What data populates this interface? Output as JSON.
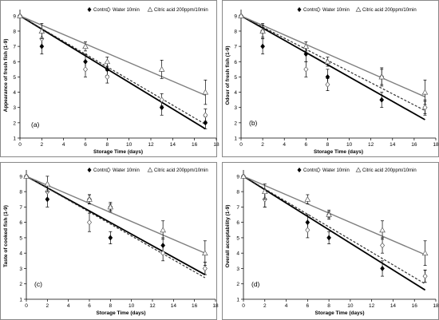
{
  "chart_data": [
    {
      "type": "scatter",
      "panel_label": "(a)",
      "ylabel": "Appearance of fresh fish (1-9)",
      "xlabel": "Storage Time (days)",
      "xlim": [
        0,
        18
      ],
      "ylim": [
        1,
        9.2
      ],
      "xticks": [
        0,
        2,
        4,
        6,
        8,
        10,
        12,
        14,
        16,
        18
      ],
      "yticks": [
        1,
        2,
        3,
        4,
        5,
        6,
        7,
        8,
        9
      ],
      "legend": [
        "Control",
        "Water 10min",
        "Citric acid 200ppm/10min"
      ],
      "x": [
        0,
        2,
        6,
        8,
        13,
        17
      ],
      "series": [
        {
          "name": "Control",
          "values": [
            9,
            7,
            6,
            5.5,
            3,
            2
          ],
          "err": [
            0,
            0.5,
            0.5,
            0.4,
            0.5,
            0.4
          ],
          "trend": [
            9,
            1.6
          ]
        },
        {
          "name": "Water 10min",
          "values": [
            9,
            7.5,
            5.5,
            5,
            3.5,
            2.5
          ],
          "err": [
            0,
            0.5,
            0.5,
            0.4,
            0.4,
            0.4
          ],
          "trend": [
            9,
            1.9
          ]
        },
        {
          "name": "Citric acid 200ppm/10min",
          "values": [
            9,
            8,
            7,
            6,
            5.5,
            4
          ],
          "err": [
            0,
            0.5,
            0.3,
            0.3,
            0.6,
            0.8
          ],
          "trend": [
            9,
            3.8
          ]
        }
      ]
    },
    {
      "type": "scatter",
      "panel_label": "(b)",
      "ylabel": "Odour of fresh fish (1-9)",
      "xlabel": "Storage Time (days)",
      "xlim": [
        0,
        18
      ],
      "ylim": [
        1,
        9.2
      ],
      "xticks": [
        0,
        2,
        4,
        6,
        8,
        10,
        12,
        14,
        16,
        18
      ],
      "yticks": [
        1,
        2,
        3,
        4,
        5,
        6,
        7,
        8,
        9
      ],
      "legend": [
        "Control",
        "Water 10min",
        "Citric acid 200ppm/10min"
      ],
      "x": [
        0,
        2,
        6,
        8,
        13,
        17
      ],
      "series": [
        {
          "name": "Control",
          "values": [
            9,
            7,
            6.5,
            5,
            3.5,
            3
          ],
          "err": [
            0,
            0.5,
            0.5,
            0.5,
            0.5,
            0.4
          ],
          "trend": [
            9,
            2.2
          ]
        },
        {
          "name": "Water 10min",
          "values": [
            9,
            8,
            5.5,
            4.5,
            5,
            3
          ],
          "err": [
            0,
            0.5,
            0.5,
            0.4,
            0.5,
            0.5
          ],
          "trend": [
            9,
            2.8
          ]
        },
        {
          "name": "Citric acid 200ppm/10min",
          "values": [
            9,
            8,
            7,
            6,
            5,
            4
          ],
          "err": [
            0,
            0.4,
            0.3,
            0.3,
            0.6,
            0.8
          ],
          "trend": [
            9,
            3.7
          ]
        }
      ]
    },
    {
      "type": "scatter",
      "panel_label": "(c)",
      "ylabel": "Taste of cooked fish (1-9)",
      "xlabel": "Storage Time (days)",
      "xlim": [
        0,
        18
      ],
      "ylim": [
        1,
        9.2
      ],
      "xticks": [
        0,
        2,
        4,
        6,
        8,
        10,
        12,
        14,
        16,
        18
      ],
      "yticks": [
        1,
        2,
        3,
        4,
        5,
        6,
        7,
        8,
        9
      ],
      "legend": [
        "Control",
        "Water 10min",
        "Citric acid 200ppm/10min"
      ],
      "x": [
        0,
        2,
        6,
        8,
        13,
        17
      ],
      "series": [
        {
          "name": "Control",
          "values": [
            9,
            7.5,
            7.5,
            5,
            4.5,
            3
          ],
          "err": [
            0,
            0.5,
            0.3,
            0.4,
            0.5,
            0.4
          ],
          "trend": [
            9,
            2.6
          ]
        },
        {
          "name": "Water 10min",
          "values": [
            9,
            8,
            6,
            7,
            4,
            3
          ],
          "err": [
            0,
            0.5,
            0.6,
            0.3,
            0.5,
            0.4
          ],
          "trend": [
            9,
            2.4
          ]
        },
        {
          "name": "Citric acid 200ppm/10min",
          "values": [
            9,
            8.5,
            7.5,
            7,
            5.5,
            4
          ],
          "err": [
            0,
            0.5,
            0.3,
            0.2,
            0.6,
            0.8
          ],
          "trend": [
            9,
            4.0
          ]
        }
      ]
    },
    {
      "type": "scatter",
      "panel_label": "(d)",
      "ylabel": "Overall acceptability (1-9)",
      "xlabel": "Storage Time (days)",
      "xlim": [
        0,
        18
      ],
      "ylim": [
        1,
        9.2
      ],
      "xticks": [
        0,
        2,
        4,
        6,
        8,
        10,
        12,
        14,
        16,
        18
      ],
      "yticks": [
        1,
        2,
        3,
        4,
        5,
        6,
        7,
        8,
        9
      ],
      "legend": [
        "Control",
        "Water 10min",
        "Citric acid 200ppm/10min"
      ],
      "x": [
        0,
        2,
        6,
        8,
        13,
        17
      ],
      "series": [
        {
          "name": "Control",
          "values": [
            9,
            7.5,
            6,
            5,
            3,
            2.5
          ],
          "err": [
            0,
            0.5,
            0.5,
            0.4,
            0.5,
            0.4
          ],
          "trend": [
            9,
            1.6
          ]
        },
        {
          "name": "Water 10min",
          "values": [
            9,
            7.5,
            5.5,
            6.5,
            4.5,
            2.5
          ],
          "err": [
            0,
            0.5,
            0.5,
            0.3,
            0.5,
            0.4
          ],
          "trend": [
            9,
            2.0
          ]
        },
        {
          "name": "Citric acid 200ppm/10min",
          "values": [
            9,
            8,
            7.5,
            6.5,
            5.5,
            4
          ],
          "err": [
            0,
            0.5,
            0.3,
            0.2,
            0.6,
            0.8
          ],
          "trend": [
            9,
            3.9
          ]
        }
      ]
    }
  ],
  "style": {
    "series_colors": [
      "#000000",
      "#333333",
      "#7f7f7f"
    ],
    "series_markers": [
      "filled-diamond",
      "open-diamond",
      "open-triangle"
    ],
    "trend_dash": [
      "solid",
      "dashed",
      "solid"
    ],
    "frame_color": "#888888"
  }
}
